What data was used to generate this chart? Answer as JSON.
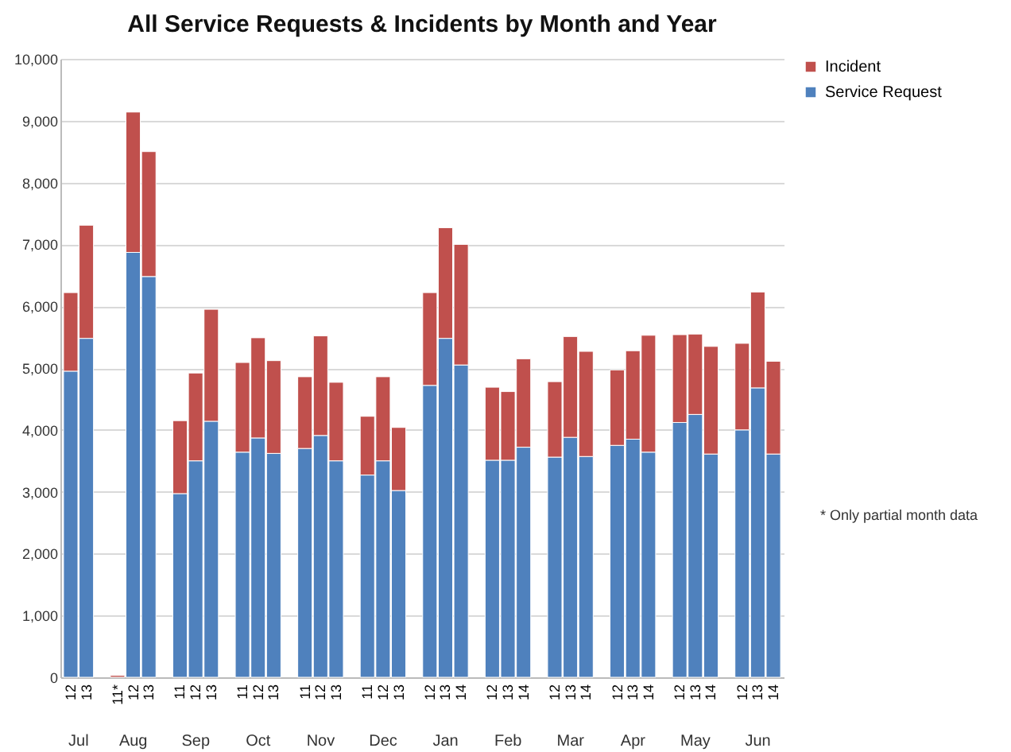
{
  "chart_data": {
    "type": "bar",
    "stacked": true,
    "title": "All Service Requests & Incidents by Month and Year",
    "categories": [
      "12",
      "13",
      null,
      "11*",
      "12",
      "13",
      null,
      "11",
      "12",
      "13",
      null,
      "11",
      "12",
      "13",
      null,
      "11",
      "12",
      "13",
      null,
      "11",
      "12",
      "13",
      null,
      "12",
      "13",
      "14",
      null,
      "12",
      "13",
      "14",
      null,
      "12",
      "13",
      "14",
      null,
      "12",
      "13",
      "14",
      null,
      "12",
      "13",
      "14",
      null,
      "12",
      "13",
      "14"
    ],
    "series": [
      {
        "name": "Service Request",
        "color": "#4f81bd",
        "values": [
          4950,
          5480,
          null,
          null,
          6870,
          6480,
          null,
          2970,
          3500,
          4140,
          null,
          3640,
          3870,
          3620,
          null,
          3700,
          3910,
          3500,
          null,
          3270,
          3500,
          3020,
          null,
          4720,
          5480,
          5050,
          null,
          3510,
          3510,
          3720,
          null,
          3560,
          3880,
          3570,
          null,
          3750,
          3850,
          3640,
          null,
          4120,
          4250,
          3610,
          null,
          4000,
          4680,
          3610
        ]
      },
      {
        "name": "Incident",
        "color": "#c0504d",
        "values": [
          1270,
          1830,
          null,
          30,
          2270,
          2020,
          null,
          1180,
          1420,
          1810,
          null,
          1450,
          1620,
          1500,
          null,
          1160,
          1610,
          1270,
          null,
          950,
          1360,
          1020,
          null,
          1500,
          1790,
          1950,
          null,
          1180,
          1110,
          1430,
          null,
          1220,
          1630,
          1700,
          null,
          1220,
          1430,
          1890,
          null,
          1420,
          1300,
          1740,
          null,
          1400,
          1550,
          1500
        ]
      }
    ],
    "annotations": [
      "Jul",
      "Aug",
      "Sep",
      "Oct",
      "Nov",
      "Dec",
      "Jan",
      "Feb",
      "Mar",
      "Apr",
      "May",
      "Jun",
      "* Only partial month data"
    ],
    "ylim": [
      0,
      10000
    ],
    "yticks": [
      0,
      {
        "value": 1000,
        "label": "1,000"
      },
      {
        "value": 2000,
        "label": "2,000"
      },
      {
        "value": 3000,
        "label": "3,000"
      },
      {
        "value": 4000,
        "label": "4,000"
      },
      {
        "value": 5000,
        "label": "5,000"
      },
      {
        "value": 6000,
        "label": "6,000"
      },
      {
        "value": 7000,
        "label": "7,000"
      },
      {
        "value": 8000,
        "label": "8,000"
      },
      {
        "value": 9000,
        "label": "9,000"
      },
      {
        "value": 10000,
        "label": "10,000"
      }
    ],
    "grid": "y",
    "legend": "right"
  }
}
